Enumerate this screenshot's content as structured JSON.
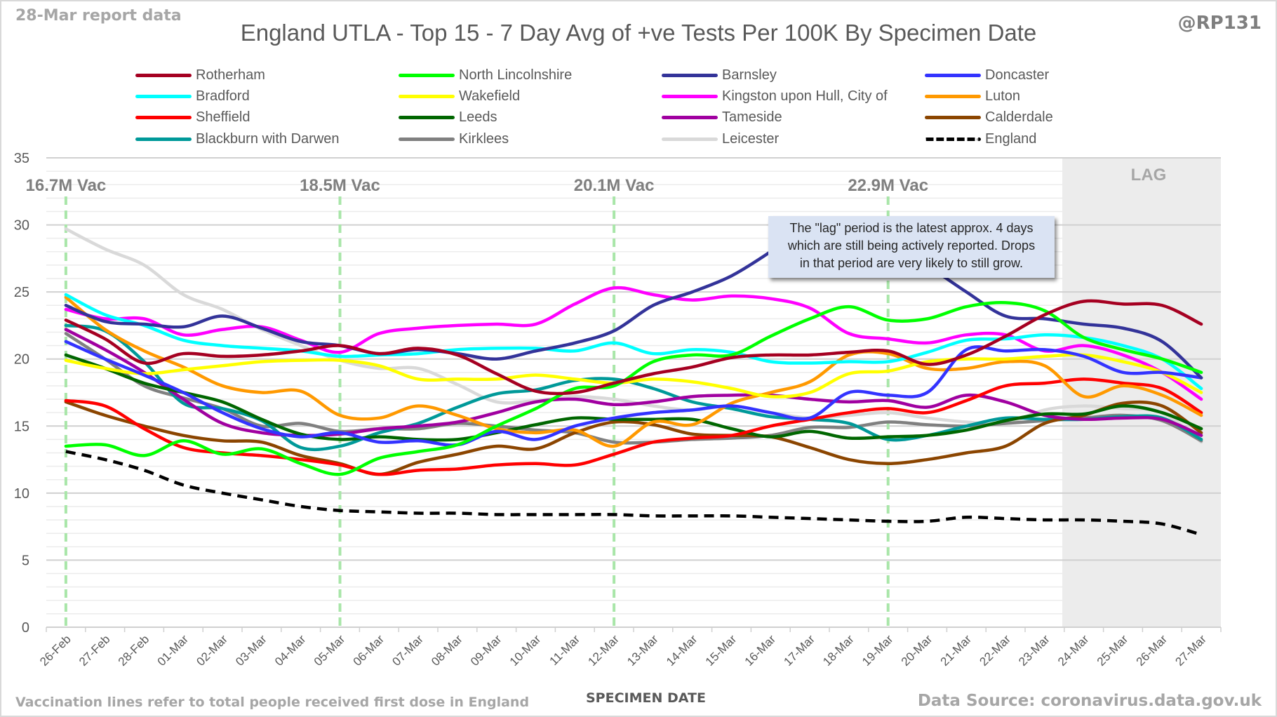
{
  "header": {
    "report_date": "28-Mar report data",
    "handle": "@RP131"
  },
  "footer": {
    "footnote": "Vaccination lines refer to total people received first dose in England",
    "source": "Data Source: coronavirus.data.gov.uk"
  },
  "annotation": {
    "lines": [
      "The \"lag\" period is the latest approx. 4 days",
      "which are still being actively reported.  Drops",
      "in that period are very likely to still grow."
    ]
  },
  "chart_data": {
    "type": "line",
    "title": "England UTLA - Top 15 - 7 Day Avg of +ve Tests Per 100K By Specimen Date",
    "xlabel": "SPECIMEN DATE",
    "ylabel": "",
    "ylim": [
      0,
      35
    ],
    "yticks": [
      0,
      5,
      10,
      15,
      20,
      25,
      30,
      35
    ],
    "grid": true,
    "legend_position": "top",
    "categories": [
      "26-Feb",
      "27-Feb",
      "28-Feb",
      "01-Mar",
      "02-Mar",
      "03-Mar",
      "04-Mar",
      "05-Mar",
      "06-Mar",
      "07-Mar",
      "08-Mar",
      "09-Mar",
      "10-Mar",
      "11-Mar",
      "12-Mar",
      "13-Mar",
      "14-Mar",
      "15-Mar",
      "16-Mar",
      "17-Mar",
      "18-Mar",
      "19-Mar",
      "20-Mar",
      "21-Mar",
      "22-Mar",
      "23-Mar",
      "24-Mar",
      "25-Mar",
      "26-Mar",
      "27-Mar"
    ],
    "vaccination_markers": [
      {
        "date": "26-Feb",
        "label": "16.7M Vac"
      },
      {
        "date": "05-Mar",
        "label": "18.5M Vac"
      },
      {
        "date": "12-Mar",
        "label": "20.1M Vac"
      },
      {
        "date": "19-Mar",
        "label": "22.9M Vac"
      }
    ],
    "lag_region": {
      "label": "LAG",
      "from": "24-Mar",
      "to": "27-Mar"
    },
    "series": [
      {
        "name": "Rotherham",
        "color": "#a50021",
        "dashed": false,
        "values": [
          22.9,
          21.5,
          19.7,
          20.4,
          20.2,
          20.3,
          20.6,
          21.0,
          20.4,
          20.8,
          20.3,
          18.9,
          17.6,
          17.5,
          18.2,
          18.9,
          19.4,
          20.1,
          20.3,
          20.3,
          20.5,
          20.6,
          19.6,
          20.3,
          21.7,
          23.3,
          24.3,
          24.1,
          24.0,
          22.6
        ]
      },
      {
        "name": "North Lincolnshire",
        "color": "#00ff00",
        "dashed": false,
        "values": [
          13.5,
          13.6,
          12.8,
          13.9,
          12.9,
          13.3,
          12.2,
          11.4,
          12.6,
          13.1,
          13.6,
          15.0,
          16.3,
          17.8,
          18.0,
          19.8,
          20.3,
          20.3,
          21.7,
          23.0,
          23.9,
          22.9,
          23.0,
          23.9,
          24.2,
          23.6,
          21.6,
          20.7,
          20.0,
          19.0
        ]
      },
      {
        "name": "Barnsley",
        "color": "#333399",
        "dashed": false,
        "values": [
          24.0,
          22.8,
          22.6,
          22.4,
          23.2,
          22.3,
          21.3,
          21.0,
          20.4,
          20.7,
          20.4,
          20.0,
          20.6,
          21.2,
          22.1,
          24.0,
          25.0,
          26.2,
          28.0,
          30.0,
          30.3,
          29.0,
          27.0,
          25.0,
          23.2,
          23.0,
          22.6,
          22.3,
          21.3,
          18.6
        ]
      },
      {
        "name": "Doncaster",
        "color": "#3333ff",
        "dashed": false,
        "values": [
          21.3,
          20.0,
          18.8,
          17.5,
          16.0,
          14.8,
          14.2,
          14.5,
          13.8,
          13.9,
          13.6,
          14.6,
          14.0,
          15.0,
          15.6,
          16.0,
          16.2,
          16.5,
          16.0,
          15.6,
          17.5,
          17.3,
          17.5,
          20.7,
          20.6,
          20.7,
          20.2,
          19.0,
          19.0,
          18.6
        ]
      },
      {
        "name": "Bradford",
        "color": "#00ffff",
        "dashed": false,
        "values": [
          24.8,
          23.3,
          22.5,
          21.4,
          21.0,
          20.8,
          20.6,
          20.2,
          20.3,
          20.4,
          20.7,
          20.8,
          20.8,
          20.6,
          21.2,
          20.4,
          20.7,
          20.5,
          19.8,
          19.7,
          19.8,
          19.8,
          20.5,
          21.4,
          21.5,
          21.8,
          21.6,
          21.0,
          20.0,
          17.8
        ]
      },
      {
        "name": "Wakefield",
        "color": "#ffff00",
        "dashed": false,
        "values": [
          19.9,
          19.3,
          18.9,
          19.2,
          19.5,
          19.8,
          19.9,
          19.9,
          19.5,
          18.5,
          18.5,
          18.5,
          18.8,
          18.5,
          18.2,
          18.5,
          18.3,
          17.8,
          17.2,
          17.5,
          18.9,
          19.1,
          19.8,
          20.0,
          20.0,
          20.2,
          20.3,
          19.8,
          19.0,
          17.5
        ]
      },
      {
        "name": "Kingston upon Hull, City of",
        "color": "#ff00ff",
        "dashed": false,
        "values": [
          23.7,
          23.0,
          23.0,
          21.8,
          22.2,
          22.4,
          21.4,
          20.5,
          21.9,
          22.3,
          22.5,
          22.6,
          22.6,
          24.1,
          25.3,
          24.8,
          24.4,
          24.7,
          24.5,
          23.8,
          21.9,
          21.5,
          21.2,
          21.8,
          21.8,
          20.6,
          21.0,
          20.3,
          19.0,
          17.0
        ]
      },
      {
        "name": "Luton",
        "color": "#ff9900",
        "dashed": false,
        "values": [
          24.6,
          22.2,
          20.6,
          19.4,
          18.0,
          17.5,
          17.6,
          15.8,
          15.6,
          16.5,
          15.8,
          14.8,
          14.5,
          14.7,
          13.5,
          15.3,
          15.1,
          16.7,
          17.5,
          18.3,
          20.3,
          20.4,
          19.3,
          19.3,
          19.8,
          19.5,
          17.2,
          18.0,
          17.3,
          15.8
        ]
      },
      {
        "name": "Sheffield",
        "color": "#ff0000",
        "dashed": false,
        "values": [
          16.9,
          16.5,
          14.8,
          13.4,
          13.0,
          12.8,
          12.5,
          12.1,
          11.4,
          11.7,
          11.8,
          12.1,
          12.2,
          12.1,
          12.9,
          13.8,
          14.1,
          14.3,
          15.0,
          15.5,
          16.0,
          16.3,
          16.0,
          16.9,
          18.0,
          18.2,
          18.5,
          18.2,
          17.8,
          16.0
        ]
      },
      {
        "name": "Leeds",
        "color": "#006600",
        "dashed": false,
        "values": [
          20.3,
          19.3,
          18.2,
          17.5,
          16.8,
          15.5,
          14.4,
          14.0,
          14.2,
          14.0,
          14.0,
          14.5,
          15.1,
          15.6,
          15.5,
          15.5,
          15.5,
          14.8,
          14.2,
          14.6,
          14.1,
          14.2,
          14.3,
          14.7,
          15.4,
          15.9,
          15.9,
          16.5,
          16.0,
          14.8
        ]
      },
      {
        "name": "Tameside",
        "color": "#a000a0",
        "dashed": false,
        "values": [
          22.2,
          20.7,
          19.0,
          17.0,
          15.2,
          14.5,
          14.3,
          14.4,
          14.8,
          15.0,
          15.3,
          16.0,
          16.8,
          17.0,
          16.6,
          16.8,
          17.2,
          17.3,
          17.3,
          17.0,
          16.8,
          16.9,
          16.4,
          17.3,
          16.8,
          15.8,
          15.5,
          15.6,
          15.5,
          14.3
        ]
      },
      {
        "name": "Calderdale",
        "color": "#8b4500",
        "dashed": false,
        "values": [
          16.8,
          15.8,
          15.0,
          14.3,
          13.9,
          13.8,
          12.8,
          12.2,
          11.4,
          12.3,
          12.9,
          13.5,
          13.3,
          14.5,
          15.3,
          15.1,
          14.4,
          14.3,
          14.2,
          13.4,
          12.5,
          12.2,
          12.5,
          13.0,
          13.5,
          15.2,
          15.8,
          16.7,
          16.5,
          14.5
        ]
      },
      {
        "name": "Blackburn with Darwen",
        "color": "#009999",
        "dashed": false,
        "values": [
          22.5,
          22.1,
          19.8,
          16.7,
          16.3,
          15.4,
          13.4,
          13.5,
          14.5,
          15.2,
          16.4,
          17.4,
          17.7,
          18.4,
          18.5,
          17.8,
          16.8,
          16.3,
          15.7,
          15.5,
          15.2,
          14.0,
          14.3,
          15.0,
          15.6,
          15.5,
          15.5,
          15.7,
          15.6,
          14.0
        ]
      },
      {
        "name": "Kirklees",
        "color": "#808080",
        "dashed": false,
        "values": [
          21.9,
          20.0,
          18.0,
          17.1,
          16.3,
          15.0,
          15.2,
          14.6,
          14.8,
          14.8,
          15.2,
          15.0,
          14.7,
          14.5,
          13.8,
          13.8,
          14.0,
          14.1,
          14.3,
          14.9,
          14.9,
          15.3,
          15.1,
          15.0,
          15.2,
          15.4,
          15.6,
          15.8,
          15.4,
          13.9
        ]
      },
      {
        "name": "Leicester",
        "color": "#d9d9d9",
        "dashed": false,
        "values": [
          29.7,
          28.2,
          27.0,
          24.8,
          23.7,
          22.2,
          21.0,
          19.9,
          19.3,
          19.3,
          18.1,
          16.8,
          16.9,
          17.2,
          17.0,
          16.5,
          16.2,
          16.5,
          16.0,
          15.6,
          15.8,
          16.0,
          15.6,
          15.3,
          15.2,
          16.2,
          16.5,
          16.3,
          16.0,
          13.8
        ]
      },
      {
        "name": "England",
        "color": "#000000",
        "dashed": true,
        "values": [
          13.1,
          12.5,
          11.7,
          10.6,
          10.0,
          9.5,
          9.0,
          8.7,
          8.6,
          8.5,
          8.5,
          8.4,
          8.4,
          8.4,
          8.4,
          8.3,
          8.3,
          8.3,
          8.2,
          8.1,
          8.0,
          7.9,
          7.9,
          8.2,
          8.1,
          8.0,
          8.0,
          7.9,
          7.7,
          6.9
        ]
      }
    ]
  }
}
